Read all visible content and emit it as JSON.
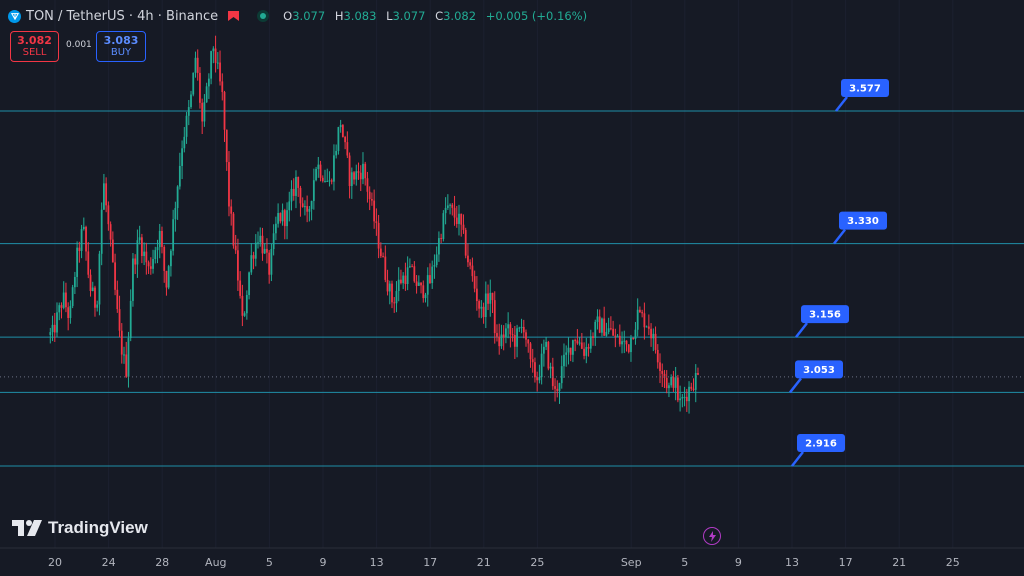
{
  "header": {
    "symbol": "TON / TetherUS · 4h · Binance",
    "ohlc": {
      "open_label": "O",
      "open": "3.077",
      "high_label": "H",
      "high": "3.083",
      "low_label": "L",
      "low": "3.077",
      "close_label": "C",
      "close": "3.082",
      "change": "+0.005 (+0.16%)"
    }
  },
  "trade": {
    "sell_price": "3.082",
    "sell_label": "SELL",
    "spread": "0.001",
    "buy_price": "3.083",
    "buy_label": "BUY"
  },
  "brand": "TradingView",
  "colors": {
    "bg": "#161a25",
    "up": "#22ab94",
    "down": "#f23645",
    "hline": "#1f8fa8",
    "label": "#2962ff"
  },
  "chart_data": {
    "type": "candlestick",
    "ylim": [
      2.79,
      3.9
    ],
    "x_ticks": [
      "20",
      "24",
      "28",
      "Aug",
      "5",
      "9",
      "13",
      "17",
      "21",
      "25",
      "Sep",
      "5",
      "9",
      "13",
      "17",
      "21",
      "25"
    ],
    "x_tick_days": [
      0,
      4,
      8,
      12,
      16,
      20,
      24,
      28,
      32,
      36,
      43,
      47,
      51,
      55,
      59,
      63,
      67
    ],
    "horizontal_levels": [
      {
        "label": "3.577",
        "value": 3.577
      },
      {
        "label": "3.330",
        "value": 3.33
      },
      {
        "label": "3.156",
        "value": 3.156
      },
      {
        "label": "3.053",
        "value": 3.053
      },
      {
        "label": "2.916",
        "value": 2.916
      }
    ],
    "current_price": 3.082,
    "series_keypoints_days": [
      -0.2,
      0.6,
      1.1,
      1.6,
      2.1,
      2.6,
      3.1,
      3.6,
      4.2,
      4.8,
      5.3,
      5.8,
      6.3,
      7.0,
      7.8,
      8.3,
      9.0,
      9.5,
      10.1,
      10.5,
      11.0,
      11.8,
      12.5,
      13.0,
      13.6,
      14.0,
      14.6,
      15.2,
      16.0,
      16.6,
      17.3,
      18.0,
      18.8,
      19.5,
      20.5,
      21.3,
      22.0,
      23.0,
      23.6,
      24.1,
      24.6,
      25.2,
      25.7,
      26.5,
      27.3,
      28.0,
      29.2,
      30.2,
      31.0,
      31.8,
      32.5,
      33.0,
      33.7,
      34.3,
      35.0,
      35.5,
      36.0,
      36.6,
      37.3,
      38.0,
      38.8,
      39.5,
      40.5,
      41.3,
      42.0,
      42.8,
      43.5,
      44.3,
      45.0,
      45.8,
      46.2,
      46.6,
      47.3,
      47.8,
      48.0
    ],
    "series_keypoints_close": [
      3.16,
      3.23,
      3.19,
      3.3,
      3.36,
      3.25,
      3.21,
      3.45,
      3.31,
      3.16,
      3.09,
      3.29,
      3.34,
      3.28,
      3.35,
      3.25,
      3.41,
      3.52,
      3.59,
      3.68,
      3.55,
      3.7,
      3.6,
      3.4,
      3.28,
      3.18,
      3.3,
      3.35,
      3.28,
      3.38,
      3.38,
      3.45,
      3.37,
      3.48,
      3.44,
      3.56,
      3.45,
      3.47,
      3.4,
      3.34,
      3.28,
      3.22,
      3.26,
      3.28,
      3.24,
      3.26,
      3.4,
      3.37,
      3.28,
      3.2,
      3.24,
      3.14,
      3.17,
      3.15,
      3.18,
      3.1,
      3.08,
      3.14,
      3.05,
      3.11,
      3.16,
      3.13,
      3.18,
      3.17,
      3.15,
      3.14,
      3.2,
      3.18,
      3.12,
      3.06,
      3.08,
      3.03,
      3.06,
      3.08,
      3.082
    ]
  }
}
